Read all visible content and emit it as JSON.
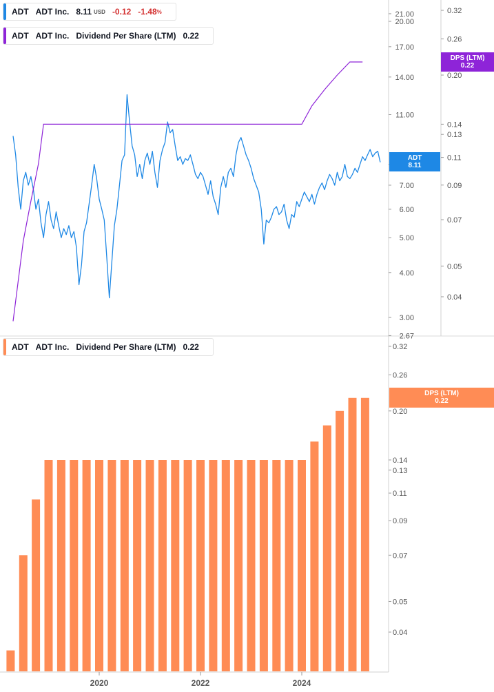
{
  "legend_price": {
    "ticker": "ADT",
    "name": "ADT Inc.",
    "price": "8.11",
    "currency": "USD",
    "change": "-0.12",
    "change_pct": "-1.48",
    "pct_sign": "%",
    "color": "#1e88e5"
  },
  "legend_dps_top": {
    "ticker": "ADT",
    "name": "ADT Inc.",
    "metric": "Dividend Per Share (LTM)",
    "value": "0.22",
    "color": "#8e24d8"
  },
  "legend_dps_bottom": {
    "ticker": "ADT",
    "name": "ADT Inc.",
    "metric": "Dividend Per Share (LTM)",
    "value": "0.22",
    "color": "#ff8c55"
  },
  "tags": {
    "price_tag": {
      "label": "ADT",
      "value": "8.11",
      "color": "#1e88e5"
    },
    "dps_tag_top": {
      "label": "DPS (LTM)",
      "value": "0.22",
      "color": "#8e24d8"
    },
    "dps_tag_bottom": {
      "label": "DPS (LTM)",
      "value": "0.22",
      "color": "#ff8c55"
    }
  },
  "chart_data": [
    {
      "type": "line",
      "scale": "log",
      "price_axis_ticks": [
        "21.00",
        "20.00",
        "17.00",
        "14.00",
        "11.00",
        "8.00",
        "7.00",
        "6.00",
        "5.00",
        "4.00",
        "3.00",
        "2.67"
      ],
      "price_ylim": [
        2.67,
        24
      ],
      "dps_axis_ticks": [
        "0.32",
        "0.26",
        "0.20",
        "0.14",
        "0.13",
        "0.11",
        "0.09",
        "0.07",
        "0.05",
        "0.04"
      ],
      "dps_ylim": [
        0.03,
        0.34
      ],
      "series": [
        {
          "name": "ADT Inc.",
          "color": "#1e88e5",
          "points": [
            [
              2018.3,
              9.6
            ],
            [
              2018.35,
              8.5
            ],
            [
              2018.4,
              6.9
            ],
            [
              2018.45,
              6.0
            ],
            [
              2018.5,
              7.2
            ],
            [
              2018.55,
              7.6
            ],
            [
              2018.6,
              7.0
            ],
            [
              2018.65,
              7.4
            ],
            [
              2018.7,
              6.8
            ],
            [
              2018.75,
              6.0
            ],
            [
              2018.8,
              6.4
            ],
            [
              2018.85,
              5.5
            ],
            [
              2018.9,
              5.0
            ],
            [
              2018.95,
              5.8
            ],
            [
              2019.0,
              6.3
            ],
            [
              2019.05,
              5.6
            ],
            [
              2019.1,
              5.3
            ],
            [
              2019.15,
              5.9
            ],
            [
              2019.2,
              5.4
            ],
            [
              2019.25,
              5.0
            ],
            [
              2019.3,
              5.3
            ],
            [
              2019.35,
              5.1
            ],
            [
              2019.4,
              5.4
            ],
            [
              2019.45,
              5.0
            ],
            [
              2019.5,
              5.2
            ],
            [
              2019.55,
              4.7
            ],
            [
              2019.6,
              3.7
            ],
            [
              2019.65,
              4.2
            ],
            [
              2019.7,
              5.2
            ],
            [
              2019.75,
              5.5
            ],
            [
              2019.8,
              6.2
            ],
            [
              2019.85,
              7.0
            ],
            [
              2019.9,
              8.0
            ],
            [
              2019.95,
              7.3
            ],
            [
              2020.0,
              6.4
            ],
            [
              2020.05,
              6.0
            ],
            [
              2020.1,
              5.6
            ],
            [
              2020.15,
              4.4
            ],
            [
              2020.2,
              3.4
            ],
            [
              2020.25,
              4.3
            ],
            [
              2020.3,
              5.4
            ],
            [
              2020.35,
              6.0
            ],
            [
              2020.4,
              7.0
            ],
            [
              2020.45,
              8.2
            ],
            [
              2020.5,
              8.5
            ],
            [
              2020.55,
              12.5
            ],
            [
              2020.6,
              10.5
            ],
            [
              2020.65,
              9.0
            ],
            [
              2020.7,
              8.5
            ],
            [
              2020.75,
              7.4
            ],
            [
              2020.8,
              8.0
            ],
            [
              2020.85,
              7.3
            ],
            [
              2020.9,
              8.2
            ],
            [
              2020.95,
              8.6
            ],
            [
              2021.0,
              8.0
            ],
            [
              2021.05,
              8.7
            ],
            [
              2021.1,
              7.6
            ],
            [
              2021.15,
              6.9
            ],
            [
              2021.2,
              8.2
            ],
            [
              2021.25,
              8.8
            ],
            [
              2021.3,
              9.2
            ],
            [
              2021.35,
              10.5
            ],
            [
              2021.4,
              9.8
            ],
            [
              2021.45,
              10.0
            ],
            [
              2021.5,
              9.0
            ],
            [
              2021.55,
              8.2
            ],
            [
              2021.6,
              8.4
            ],
            [
              2021.65,
              8.0
            ],
            [
              2021.7,
              8.3
            ],
            [
              2021.75,
              8.2
            ],
            [
              2021.8,
              8.5
            ],
            [
              2021.85,
              8.0
            ],
            [
              2021.9,
              7.5
            ],
            [
              2021.95,
              7.3
            ],
            [
              2022.0,
              7.6
            ],
            [
              2022.05,
              7.4
            ],
            [
              2022.1,
              7.0
            ],
            [
              2022.15,
              6.6
            ],
            [
              2022.2,
              7.2
            ],
            [
              2022.25,
              6.5
            ],
            [
              2022.3,
              6.2
            ],
            [
              2022.35,
              5.8
            ],
            [
              2022.4,
              6.9
            ],
            [
              2022.45,
              7.4
            ],
            [
              2022.5,
              6.9
            ],
            [
              2022.55,
              7.6
            ],
            [
              2022.6,
              7.8
            ],
            [
              2022.65,
              7.4
            ],
            [
              2022.7,
              8.5
            ],
            [
              2022.75,
              9.2
            ],
            [
              2022.8,
              9.5
            ],
            [
              2022.85,
              9.0
            ],
            [
              2022.9,
              8.5
            ],
            [
              2022.95,
              8.2
            ],
            [
              2023.0,
              7.8
            ],
            [
              2023.05,
              7.3
            ],
            [
              2023.1,
              7.0
            ],
            [
              2023.15,
              6.7
            ],
            [
              2023.2,
              6.0
            ],
            [
              2023.25,
              4.8
            ],
            [
              2023.3,
              5.6
            ],
            [
              2023.35,
              5.5
            ],
            [
              2023.4,
              5.7
            ],
            [
              2023.45,
              6.0
            ],
            [
              2023.5,
              6.1
            ],
            [
              2023.55,
              5.8
            ],
            [
              2023.6,
              5.9
            ],
            [
              2023.65,
              6.2
            ],
            [
              2023.7,
              5.6
            ],
            [
              2023.75,
              5.3
            ],
            [
              2023.8,
              5.8
            ],
            [
              2023.85,
              5.7
            ],
            [
              2023.9,
              6.3
            ],
            [
              2023.95,
              6.1
            ],
            [
              2024.0,
              6.4
            ],
            [
              2024.05,
              6.7
            ],
            [
              2024.1,
              6.5
            ],
            [
              2024.15,
              6.3
            ],
            [
              2024.2,
              6.6
            ],
            [
              2024.25,
              6.2
            ],
            [
              2024.3,
              6.6
            ],
            [
              2024.35,
              6.9
            ],
            [
              2024.4,
              7.1
            ],
            [
              2024.45,
              6.8
            ],
            [
              2024.5,
              7.2
            ],
            [
              2024.55,
              7.5
            ],
            [
              2024.6,
              7.3
            ],
            [
              2024.65,
              7.0
            ],
            [
              2024.7,
              7.6
            ],
            [
              2024.75,
              7.2
            ],
            [
              2024.8,
              7.4
            ],
            [
              2024.85,
              8.0
            ],
            [
              2024.9,
              7.4
            ],
            [
              2024.95,
              7.3
            ],
            [
              2025.0,
              7.5
            ],
            [
              2025.05,
              7.8
            ],
            [
              2025.1,
              7.6
            ],
            [
              2025.15,
              8.0
            ],
            [
              2025.2,
              8.4
            ],
            [
              2025.25,
              8.2
            ],
            [
              2025.3,
              8.5
            ],
            [
              2025.35,
              8.8
            ],
            [
              2025.4,
              8.4
            ],
            [
              2025.45,
              8.6
            ],
            [
              2025.5,
              8.7
            ],
            [
              2025.55,
              8.11
            ]
          ]
        },
        {
          "name": "Dividend Per Share (LTM)",
          "color": "#8e24d8",
          "points": [
            [
              2018.3,
              0.0335
            ],
            [
              2018.5,
              0.06
            ],
            [
              2018.65,
              0.08
            ],
            [
              2018.8,
              0.105
            ],
            [
              2018.9,
              0.14
            ],
            [
              2020.0,
              0.14
            ],
            [
              2021.0,
              0.14
            ],
            [
              2022.0,
              0.14
            ],
            [
              2023.0,
              0.14
            ],
            [
              2024.0,
              0.14
            ],
            [
              2024.2,
              0.16
            ],
            [
              2024.45,
              0.18
            ],
            [
              2024.7,
              0.2
            ],
            [
              2024.95,
              0.22
            ],
            [
              2025.2,
              0.22
            ]
          ]
        }
      ]
    },
    {
      "type": "bar",
      "scale": "log",
      "dps_axis_ticks": [
        "0.32",
        "0.26",
        "0.20",
        "0.14",
        "0.13",
        "0.11",
        "0.09",
        "0.07",
        "0.05",
        "0.04"
      ],
      "ylim": [
        0.03,
        0.34
      ],
      "x_ticks": [
        "2020",
        "2022",
        "2024"
      ],
      "series": [
        {
          "name": "Dividend Per Share (LTM)",
          "color": "#ff8c55",
          "points": [
            [
              2018.25,
              0.035
            ],
            [
              2018.5,
              0.07
            ],
            [
              2018.75,
              0.105
            ],
            [
              2019.0,
              0.14
            ],
            [
              2019.25,
              0.14
            ],
            [
              2019.5,
              0.14
            ],
            [
              2019.75,
              0.14
            ],
            [
              2020.0,
              0.14
            ],
            [
              2020.25,
              0.14
            ],
            [
              2020.5,
              0.14
            ],
            [
              2020.75,
              0.14
            ],
            [
              2021.0,
              0.14
            ],
            [
              2021.25,
              0.14
            ],
            [
              2021.5,
              0.14
            ],
            [
              2021.75,
              0.14
            ],
            [
              2022.0,
              0.14
            ],
            [
              2022.25,
              0.14
            ],
            [
              2022.5,
              0.14
            ],
            [
              2022.75,
              0.14
            ],
            [
              2023.0,
              0.14
            ],
            [
              2023.25,
              0.14
            ],
            [
              2023.5,
              0.14
            ],
            [
              2023.75,
              0.14
            ],
            [
              2024.0,
              0.14
            ],
            [
              2024.25,
              0.16
            ],
            [
              2024.5,
              0.18
            ],
            [
              2024.75,
              0.2
            ],
            [
              2025.0,
              0.22
            ],
            [
              2025.25,
              0.22
            ]
          ]
        }
      ]
    }
  ]
}
